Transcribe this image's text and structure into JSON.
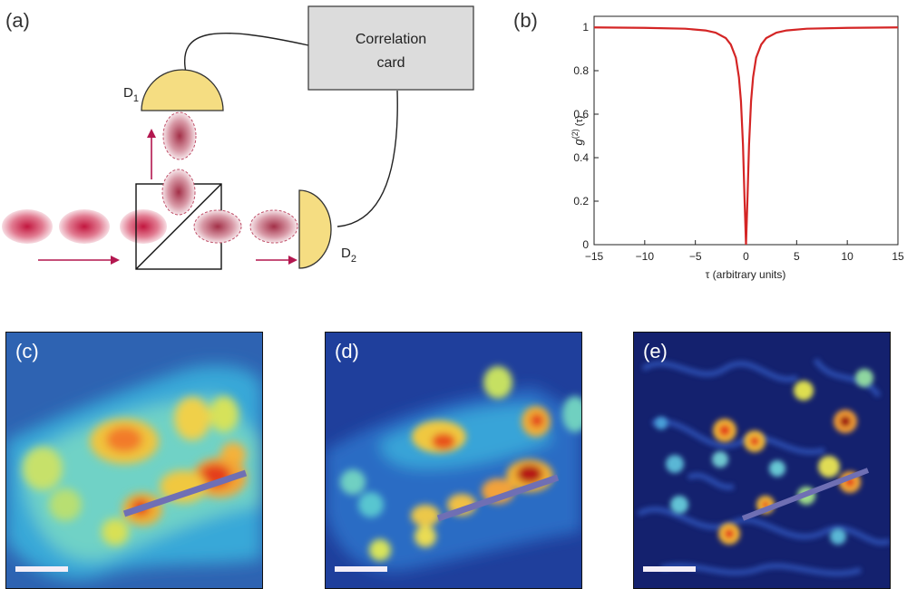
{
  "panel_a": {
    "label": "(a)",
    "correlation_card": [
      "Correlation",
      "card"
    ],
    "detector_1": {
      "letter": "D",
      "sub": "1"
    },
    "detector_2": {
      "letter": "D",
      "sub": "2"
    },
    "colors": {
      "detector": "#f5dd82",
      "box": "#dcdcdc",
      "arrow": "#b3174f",
      "photon": "#c81d4a"
    }
  },
  "panel_b": {
    "label": "(b)",
    "ylabel": {
      "base": "g",
      "sup": "(2)",
      "arg": "(τ)"
    },
    "xlabel": "τ (arbitrary units)"
  },
  "chart_data": {
    "type": "line",
    "xlim": [
      -15,
      15
    ],
    "ylim": [
      0,
      1.05
    ],
    "xticks": [
      -15,
      -10,
      -5,
      0,
      5,
      10,
      15
    ],
    "yticks": [
      0,
      0.2,
      0.4,
      0.6,
      0.8,
      1
    ],
    "grid": false,
    "series": [
      {
        "color": "#d42525",
        "x": [
          -15,
          -10,
          -6,
          -4,
          -3,
          -2,
          -1.5,
          -1,
          -0.7,
          -0.5,
          -0.3,
          -0.15,
          0,
          0.15,
          0.3,
          0.5,
          0.7,
          1,
          1.5,
          2,
          3,
          4,
          6,
          10,
          15
        ],
        "y": [
          0.999,
          0.997,
          0.993,
          0.985,
          0.975,
          0.95,
          0.92,
          0.86,
          0.77,
          0.66,
          0.46,
          0.22,
          0,
          0.22,
          0.46,
          0.66,
          0.77,
          0.86,
          0.92,
          0.95,
          0.975,
          0.985,
          0.993,
          0.997,
          0.999
        ]
      }
    ]
  },
  "images": [
    {
      "label": "(c)"
    },
    {
      "label": "(d)"
    },
    {
      "label": "(e)"
    }
  ],
  "colors": {
    "line_overlay": "#6f6fb4",
    "scalebar": "#f4eef8"
  }
}
